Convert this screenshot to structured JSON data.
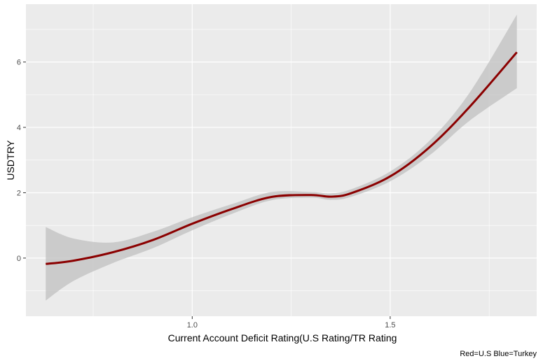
{
  "chart_data": {
    "type": "line",
    "title": "",
    "xlabel": "Current Account Deficit Rating(U.S Rating/TR Rating",
    "ylabel": "USDTRY",
    "caption": "Red=U.S Blue=Turkey",
    "xlim": [
      0.58,
      1.87
    ],
    "ylim": [
      -1.78,
      7.77
    ],
    "x_ticks": [
      1.0,
      1.5
    ],
    "x_tick_labels": [
      "1.0",
      "1.5"
    ],
    "y_ticks": [
      0,
      2,
      4,
      6
    ],
    "y_tick_labels": [
      "0",
      "2",
      "4",
      "6"
    ],
    "x_minor_breaks": [
      0.75,
      1.25,
      1.75
    ],
    "y_minor_breaks": [
      -1,
      1,
      3,
      5,
      7
    ],
    "grid": true,
    "legend": "none",
    "colors": {
      "panel_background": "#EBEBEB",
      "grid": "#FFFFFF",
      "line": "#8B0000",
      "ribbon": "#BEBEBE"
    },
    "series": [
      {
        "x": [
          0.63,
          0.7,
          0.8,
          0.9,
          1.0,
          1.1,
          1.2,
          1.3,
          1.35,
          1.4,
          1.5,
          1.6,
          1.7,
          1.82
        ],
        "y": [
          -0.18,
          -0.08,
          0.18,
          0.55,
          1.05,
          1.5,
          1.87,
          1.93,
          1.88,
          1.98,
          2.5,
          3.4,
          4.62,
          6.3
        ],
        "ymin": [
          -1.3,
          -0.7,
          -0.15,
          0.3,
          0.85,
          1.35,
          1.77,
          1.85,
          1.78,
          1.87,
          2.35,
          3.15,
          4.2,
          5.2
        ],
        "ymax": [
          0.95,
          0.6,
          0.48,
          0.8,
          1.25,
          1.65,
          2.02,
          2.02,
          1.98,
          2.1,
          2.65,
          3.6,
          5.05,
          7.45
        ]
      }
    ]
  }
}
